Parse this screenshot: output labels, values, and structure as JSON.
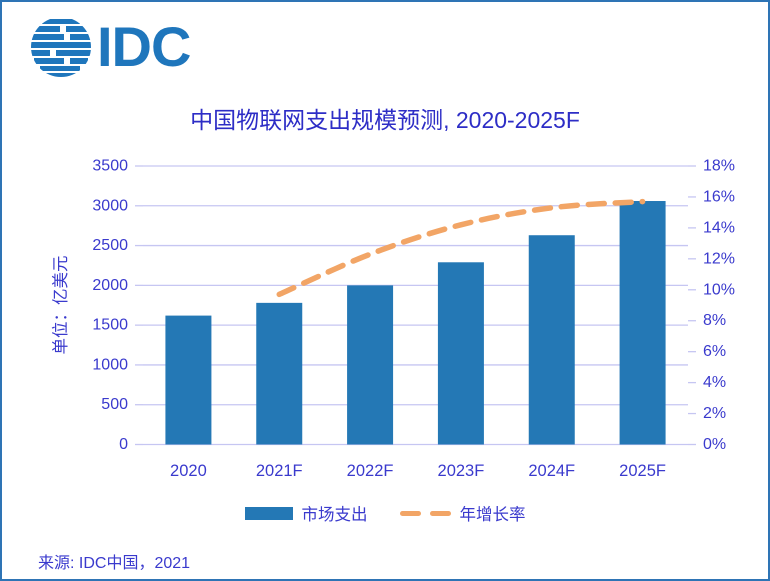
{
  "logo": {
    "text": "IDC"
  },
  "colors": {
    "frame_border": "#2E74B5",
    "logo_blue": "#1F76BC",
    "title_text": "#2D2DC6",
    "axis_text": "#3A3ACD",
    "gridline": "#C6C6F2",
    "bar_fill": "#2478B5",
    "line_orange": "#F2A566"
  },
  "chart_data": {
    "type": "bar+line combo",
    "title": "中国物联网支出规模预测, 2020-2025F",
    "categories": [
      "2020",
      "2021F",
      "2022F",
      "2023F",
      "2024F",
      "2025F"
    ],
    "series": [
      {
        "name": "市场支出",
        "chart": "bar",
        "axis": "left",
        "color": "#2478B5",
        "values": [
          1620,
          1780,
          2000,
          2290,
          2630,
          3060
        ]
      },
      {
        "name": "年增长率",
        "chart": "line",
        "dashed": true,
        "axis": "right",
        "color": "#F2A566",
        "values": [
          null,
          9.7,
          12.3,
          14.2,
          15.3,
          15.7
        ]
      }
    ],
    "left_axis": {
      "title": "单位：亿美元",
      "min": 0,
      "max": 3500,
      "step": 500,
      "tick_labels": [
        "0",
        "500",
        "1000",
        "1500",
        "2000",
        "2500",
        "3000",
        "3500"
      ]
    },
    "right_axis": {
      "min": 0,
      "max": 18,
      "step": 2,
      "unit": "%",
      "tick_labels": [
        "0%",
        "2%",
        "4%",
        "6%",
        "8%",
        "10%",
        "12%",
        "14%",
        "16%",
        "18%"
      ]
    },
    "grid": true,
    "legend_position": "bottom"
  },
  "source": "来源:  IDC中国，2021"
}
